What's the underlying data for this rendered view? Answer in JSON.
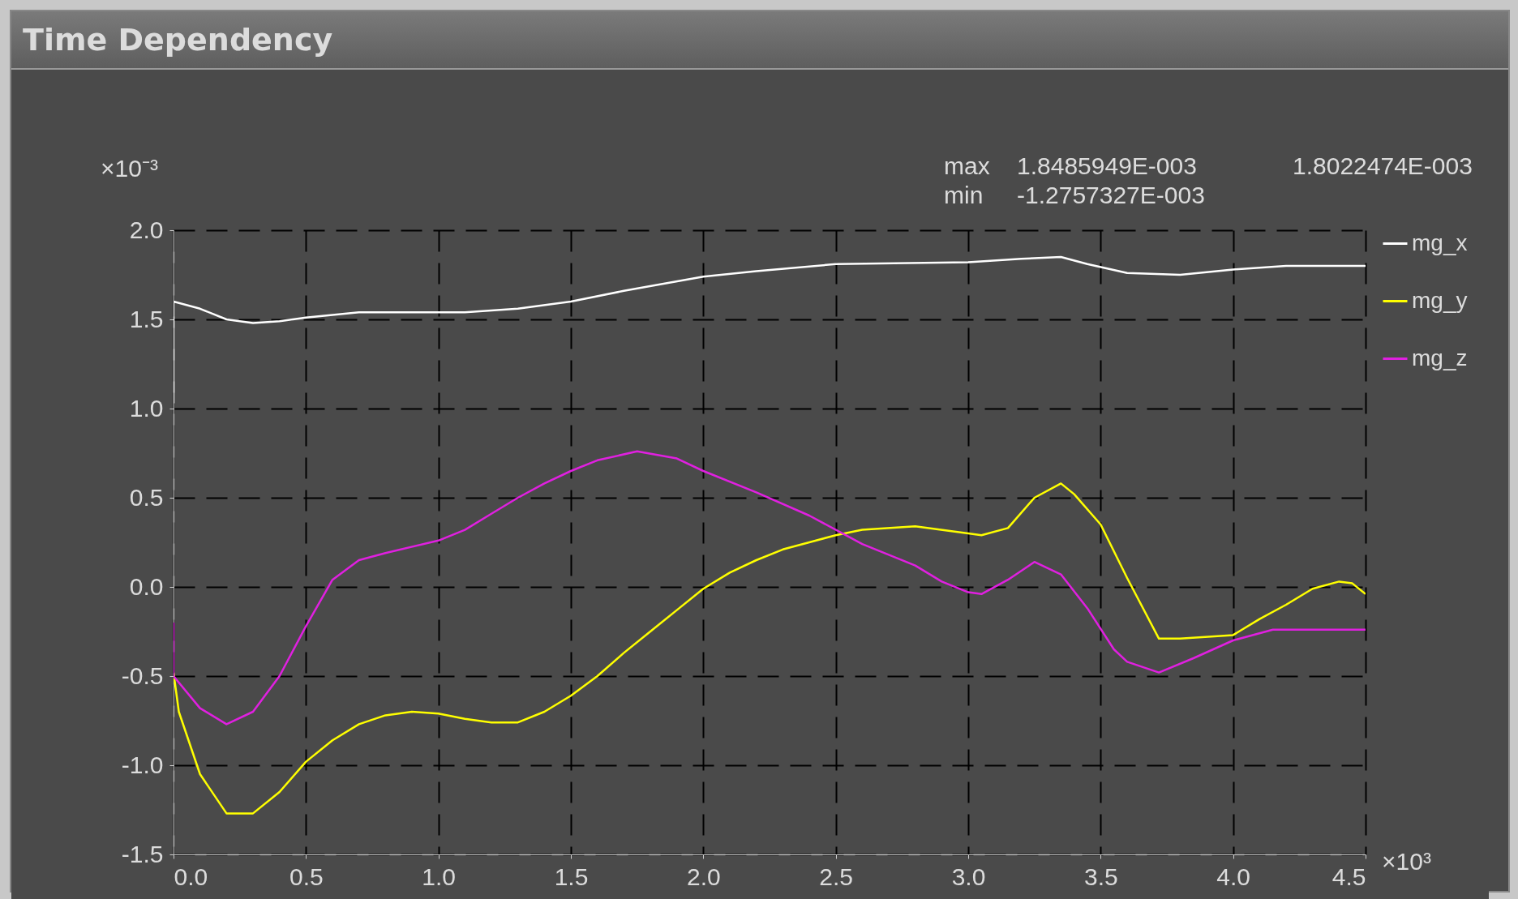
{
  "chart_data": {
    "type": "line",
    "title": "Time Dependency",
    "annotations": [
      "×10⁻³",
      "max",
      "1.8485949E-003",
      "1.8022474E-003",
      "min",
      "-1.2757327E-003",
      "×10³"
    ],
    "xlim": [
      0,
      4.5
    ],
    "ylim": [
      -1.5,
      2.0
    ],
    "xticks": [
      {
        "value": 0,
        "label": "0.0"
      },
      {
        "value": 0.5,
        "label": "0.5"
      },
      {
        "value": 1,
        "label": "1.0"
      },
      {
        "value": 1.5,
        "label": "1.5"
      },
      {
        "value": 2,
        "label": "2.0"
      },
      {
        "value": 2.5,
        "label": "2.5"
      },
      {
        "value": 3,
        "label": "3.0"
      },
      {
        "value": 3.5,
        "label": "3.5"
      },
      {
        "value": 4,
        "label": "4.0"
      },
      {
        "value": 4.5,
        "label": "4.5"
      }
    ],
    "yticks": [
      {
        "value": -1.5,
        "label": "-1.5"
      },
      {
        "value": -1,
        "label": "-1.0"
      },
      {
        "value": -0.5,
        "label": "-0.5"
      },
      {
        "value": 0,
        "label": "0.0"
      },
      {
        "value": 0.5,
        "label": "0.5"
      },
      {
        "value": 1,
        "label": "1.0"
      },
      {
        "value": 1.5,
        "label": "1.5"
      },
      {
        "value": 2,
        "label": "2.0"
      }
    ],
    "grid": true,
    "legend": "top right",
    "series": [
      {
        "name": "mg_x",
        "color": "#ffffff",
        "x": [
          0,
          0,
          0.1,
          0.2,
          0.3,
          0.4,
          0.5,
          0.7,
          1.1,
          1.3,
          1.5,
          1.7,
          2.0,
          2.2,
          2.5,
          3.0,
          3.2,
          3.35,
          3.45,
          3.6,
          3.8,
          4.0,
          4.2,
          4.5
        ],
        "values": [
          1.03,
          1.6,
          1.56,
          1.5,
          1.48,
          1.49,
          1.51,
          1.54,
          1.54,
          1.56,
          1.6,
          1.66,
          1.74,
          1.77,
          1.81,
          1.82,
          1.84,
          1.85,
          1.81,
          1.76,
          1.75,
          1.78,
          1.8,
          1.8
        ]
      },
      {
        "name": "mg_y",
        "color": "#ffff00",
        "x": [
          0,
          0.02,
          0.1,
          0.2,
          0.3,
          0.4,
          0.5,
          0.6,
          0.7,
          0.8,
          0.9,
          1.0,
          1.1,
          1.2,
          1.3,
          1.4,
          1.5,
          1.6,
          1.7,
          1.8,
          1.9,
          2.0,
          2.1,
          2.2,
          2.3,
          2.4,
          2.5,
          2.6,
          2.8,
          3.0,
          3.05,
          3.15,
          3.25,
          3.35,
          3.4,
          3.5,
          3.6,
          3.72,
          3.8,
          4.0,
          4.1,
          4.2,
          4.3,
          4.4,
          4.45,
          4.5
        ],
        "values": [
          -0.48,
          -0.7,
          -1.05,
          -1.27,
          -1.27,
          -1.15,
          -0.98,
          -0.86,
          -0.77,
          -0.72,
          -0.7,
          -0.71,
          -0.74,
          -0.76,
          -0.76,
          -0.7,
          -0.61,
          -0.5,
          -0.37,
          -0.25,
          -0.13,
          -0.01,
          0.08,
          0.15,
          0.21,
          0.25,
          0.29,
          0.32,
          0.34,
          0.3,
          0.29,
          0.33,
          0.5,
          0.58,
          0.52,
          0.35,
          0.05,
          -0.29,
          -0.29,
          -0.27,
          -0.18,
          -0.1,
          -0.01,
          0.03,
          0.02,
          -0.04
        ]
      },
      {
        "name": "mg_z",
        "color": "#e020e0",
        "x": [
          0,
          0,
          0.1,
          0.2,
          0.3,
          0.4,
          0.5,
          0.6,
          0.7,
          0.8,
          1.0,
          1.1,
          1.2,
          1.3,
          1.4,
          1.5,
          1.6,
          1.75,
          1.9,
          2.0,
          2.2,
          2.4,
          2.6,
          2.8,
          2.9,
          3.0,
          3.05,
          3.15,
          3.25,
          3.35,
          3.45,
          3.55,
          3.6,
          3.72,
          3.85,
          4.0,
          4.15,
          4.3,
          4.5
        ],
        "values": [
          -0.2,
          -0.5,
          -0.68,
          -0.77,
          -0.7,
          -0.5,
          -0.22,
          0.04,
          0.15,
          0.19,
          0.26,
          0.32,
          0.41,
          0.5,
          0.58,
          0.65,
          0.71,
          0.76,
          0.72,
          0.65,
          0.53,
          0.4,
          0.24,
          0.12,
          0.03,
          -0.03,
          -0.04,
          0.04,
          0.14,
          0.07,
          -0.12,
          -0.35,
          -0.42,
          -0.48,
          -0.4,
          -0.3,
          -0.24,
          -0.24,
          -0.24
        ]
      }
    ]
  }
}
